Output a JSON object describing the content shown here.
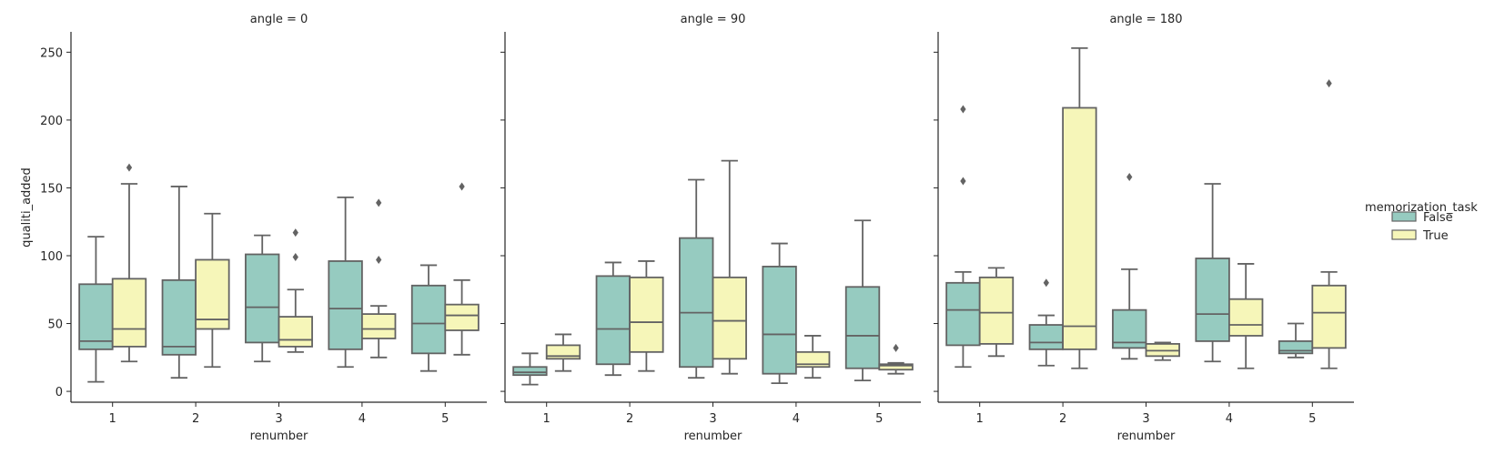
{
  "chart_data": {
    "type": "boxplot",
    "xlabel": "renumber",
    "ylabel": "qualiti_added",
    "categories": [
      "1",
      "2",
      "3",
      "4",
      "5"
    ],
    "yticks": [
      0,
      50,
      100,
      150,
      200,
      250
    ],
    "ylim": [
      -8,
      265
    ],
    "grid": false,
    "legend": {
      "title": "memorization_task",
      "placement": "right",
      "entries": [
        {
          "label": "False",
          "color": "#96cbc0"
        },
        {
          "label": "True",
          "color": "#f6f6b9"
        }
      ]
    },
    "colors": {
      "False": "#96cbc0",
      "True": "#f6f6b9",
      "line": "#636363"
    },
    "facets": [
      {
        "title": "angle = 0",
        "groups": [
          {
            "renumber": "1",
            "hue": "False",
            "whislo": 7,
            "q1": 31,
            "med": 37,
            "q3": 79,
            "whishi": 114,
            "fliers": []
          },
          {
            "renumber": "1",
            "hue": "True",
            "whislo": 22,
            "q1": 33,
            "med": 46,
            "q3": 83,
            "whishi": 153,
            "fliers": [
              165
            ]
          },
          {
            "renumber": "2",
            "hue": "False",
            "whislo": 10,
            "q1": 27,
            "med": 33,
            "q3": 82,
            "whishi": 151,
            "fliers": []
          },
          {
            "renumber": "2",
            "hue": "True",
            "whislo": 18,
            "q1": 46,
            "med": 53,
            "q3": 97,
            "whishi": 131,
            "fliers": []
          },
          {
            "renumber": "3",
            "hue": "False",
            "whislo": 22,
            "q1": 36,
            "med": 62,
            "q3": 101,
            "whishi": 115,
            "fliers": []
          },
          {
            "renumber": "3",
            "hue": "True",
            "whislo": 29,
            "q1": 33,
            "med": 38,
            "q3": 55,
            "whishi": 75,
            "fliers": [
              99,
              117
            ]
          },
          {
            "renumber": "4",
            "hue": "False",
            "whislo": 18,
            "q1": 31,
            "med": 61,
            "q3": 96,
            "whishi": 143,
            "fliers": []
          },
          {
            "renumber": "4",
            "hue": "True",
            "whislo": 25,
            "q1": 39,
            "med": 46,
            "q3": 57,
            "whishi": 63,
            "fliers": [
              97,
              139
            ]
          },
          {
            "renumber": "5",
            "hue": "False",
            "whislo": 15,
            "q1": 28,
            "med": 50,
            "q3": 78,
            "whishi": 93,
            "fliers": []
          },
          {
            "renumber": "5",
            "hue": "True",
            "whislo": 27,
            "q1": 45,
            "med": 56,
            "q3": 64,
            "whishi": 82,
            "fliers": [
              151
            ]
          }
        ]
      },
      {
        "title": "angle = 90",
        "groups": [
          {
            "renumber": "1",
            "hue": "False",
            "whislo": 5,
            "q1": 12,
            "med": 14,
            "q3": 18,
            "whishi": 28,
            "fliers": []
          },
          {
            "renumber": "1",
            "hue": "True",
            "whislo": 15,
            "q1": 24,
            "med": 26,
            "q3": 34,
            "whishi": 42,
            "fliers": []
          },
          {
            "renumber": "2",
            "hue": "False",
            "whislo": 12,
            "q1": 20,
            "med": 46,
            "q3": 85,
            "whishi": 95,
            "fliers": []
          },
          {
            "renumber": "2",
            "hue": "True",
            "whislo": 15,
            "q1": 29,
            "med": 51,
            "q3": 84,
            "whishi": 96,
            "fliers": []
          },
          {
            "renumber": "3",
            "hue": "False",
            "whislo": 10,
            "q1": 18,
            "med": 58,
            "q3": 113,
            "whishi": 156,
            "fliers": []
          },
          {
            "renumber": "3",
            "hue": "True",
            "whislo": 13,
            "q1": 24,
            "med": 52,
            "q3": 84,
            "whishi": 170,
            "fliers": []
          },
          {
            "renumber": "4",
            "hue": "False",
            "whislo": 6,
            "q1": 13,
            "med": 42,
            "q3": 92,
            "whishi": 109,
            "fliers": []
          },
          {
            "renumber": "4",
            "hue": "True",
            "whislo": 10,
            "q1": 18,
            "med": 20,
            "q3": 29,
            "whishi": 41,
            "fliers": []
          },
          {
            "renumber": "5",
            "hue": "False",
            "whislo": 8,
            "q1": 17,
            "med": 41,
            "q3": 77,
            "whishi": 126,
            "fliers": []
          },
          {
            "renumber": "5",
            "hue": "True",
            "whislo": 13,
            "q1": 16,
            "med": 19,
            "q3": 20,
            "whishi": 21,
            "fliers": [
              32
            ]
          }
        ]
      },
      {
        "title": "angle = 180",
        "groups": [
          {
            "renumber": "1",
            "hue": "False",
            "whislo": 18,
            "q1": 34,
            "med": 60,
            "q3": 80,
            "whishi": 88,
            "fliers": [
              155,
              208
            ]
          },
          {
            "renumber": "1",
            "hue": "True",
            "whislo": 26,
            "q1": 35,
            "med": 58,
            "q3": 84,
            "whishi": 91,
            "fliers": []
          },
          {
            "renumber": "2",
            "hue": "False",
            "whislo": 19,
            "q1": 31,
            "med": 36,
            "q3": 49,
            "whishi": 56,
            "fliers": [
              80
            ]
          },
          {
            "renumber": "2",
            "hue": "True",
            "whislo": 17,
            "q1": 31,
            "med": 48,
            "q3": 209,
            "whishi": 253,
            "fliers": []
          },
          {
            "renumber": "3",
            "hue": "False",
            "whislo": 24,
            "q1": 32,
            "med": 36,
            "q3": 60,
            "whishi": 90,
            "fliers": [
              158
            ]
          },
          {
            "renumber": "3",
            "hue": "True",
            "whislo": 23,
            "q1": 26,
            "med": 30,
            "q3": 35,
            "whishi": 36,
            "fliers": []
          },
          {
            "renumber": "4",
            "hue": "False",
            "whislo": 22,
            "q1": 37,
            "med": 57,
            "q3": 98,
            "whishi": 153,
            "fliers": []
          },
          {
            "renumber": "4",
            "hue": "True",
            "whislo": 17,
            "q1": 41,
            "med": 49,
            "q3": 68,
            "whishi": 94,
            "fliers": []
          },
          {
            "renumber": "5",
            "hue": "False",
            "whislo": 25,
            "q1": 28,
            "med": 30,
            "q3": 37,
            "whishi": 50,
            "fliers": []
          },
          {
            "renumber": "5",
            "hue": "True",
            "whislo": 17,
            "q1": 32,
            "med": 58,
            "q3": 78,
            "whishi": 88,
            "fliers": [
              227
            ]
          }
        ]
      }
    ]
  }
}
